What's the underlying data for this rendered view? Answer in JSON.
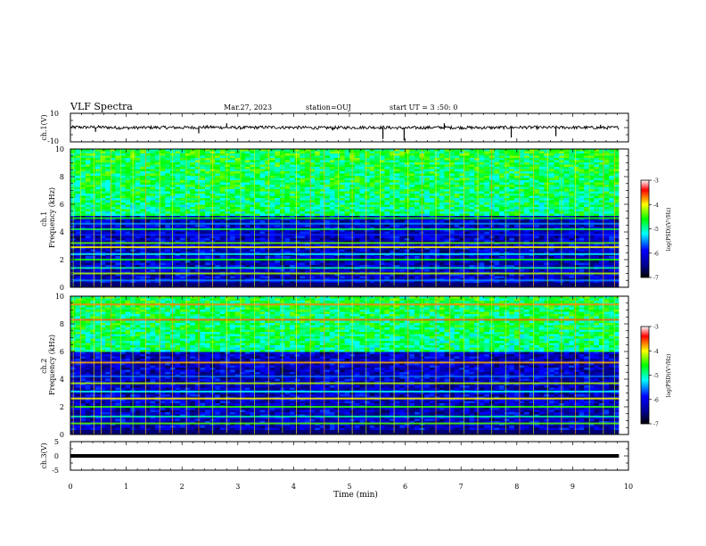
{
  "header": {
    "title": "VLF Spectra",
    "date": "Mar.27, 2023",
    "station": "station=OUJ",
    "start": "start UT = 3 :50: 0"
  },
  "colors": {
    "spectrogram_scale": [
      "#000000",
      "#00008b",
      "#0000ff",
      "#00ffff",
      "#00ff00",
      "#ffff00",
      "#ff0000",
      "#ffffff"
    ],
    "trace": "#000000"
  },
  "chart_data": [
    {
      "type": "line",
      "name": "ch1-waveform",
      "ylabel": "ch.1(V)",
      "ylim": [
        -10,
        10
      ],
      "yticks": [
        "10",
        "-10"
      ],
      "x": [
        0,
        0.5,
        1.0,
        1.5,
        2.0,
        2.5,
        3.0,
        3.5,
        4.0,
        4.5,
        5.0,
        5.5,
        6.0,
        6.5,
        7.0,
        7.5,
        8.0,
        8.5,
        9.0,
        9.5,
        9.83
      ],
      "y": [
        0.2,
        0.3,
        -0.2,
        0.1,
        0.0,
        0.3,
        -0.1,
        0.2,
        0.1,
        -0.2,
        0.0,
        0.2,
        -0.3,
        0.1,
        0.0,
        -0.1,
        0.2,
        0.0,
        0.1,
        -0.1,
        0.0
      ],
      "spikes": [
        {
          "x": 0.45,
          "y": -3
        },
        {
          "x": 2.3,
          "y": -4
        },
        {
          "x": 2.8,
          "y": 3
        },
        {
          "x": 4.7,
          "y": -2
        },
        {
          "x": 5.6,
          "y": -8
        },
        {
          "x": 5.98,
          "y": -9
        },
        {
          "x": 6.7,
          "y": 3
        },
        {
          "x": 7.9,
          "y": -7
        },
        {
          "x": 8.7,
          "y": -6
        },
        {
          "x": 9.5,
          "y": 2
        }
      ]
    },
    {
      "type": "heatmap",
      "name": "ch1-spectrogram",
      "ylabel": "ch.1 Frequency (kHz)",
      "ylim": [
        0,
        10
      ],
      "yticks": [
        "0",
        "2",
        "4",
        "6",
        "8",
        "10"
      ],
      "xlim": [
        0,
        10
      ],
      "data_xmax": 9.83,
      "colorbar": {
        "label": "log(PSD)(V²/Hz)",
        "range": [
          -7,
          -3
        ],
        "ticks": [
          "-3",
          "-4",
          "-5",
          "-6",
          "-7"
        ]
      },
      "noise_floor_khz": 5.2,
      "bands_khz": [
        {
          "f": 0.5,
          "level": -5.5
        },
        {
          "f": 1.0,
          "level": -4.2
        },
        {
          "f": 1.4,
          "level": -5.0
        },
        {
          "f": 2.0,
          "level": -4.6
        },
        {
          "f": 2.4,
          "level": -5.2
        },
        {
          "f": 2.9,
          "level": -4.0
        },
        {
          "f": 3.2,
          "level": -4.4
        },
        {
          "f": 3.8,
          "level": -5.8
        },
        {
          "f": 4.2,
          "level": -4.8
        },
        {
          "f": 4.6,
          "level": -5.5
        },
        {
          "f": 5.0,
          "level": -4.6
        }
      ],
      "sferics_min": [
        0.05,
        0.18,
        0.42,
        0.55,
        0.73,
        0.9,
        1.12,
        1.35,
        1.6,
        1.83,
        2.08,
        2.3,
        2.55,
        2.8,
        3.05,
        3.3,
        3.55,
        3.8,
        4.05,
        4.3,
        4.55,
        4.8,
        5.05,
        5.3,
        5.55,
        5.8,
        6.05,
        6.3,
        6.55,
        6.8,
        7.05,
        7.3,
        7.55,
        7.8,
        8.05,
        8.3,
        8.55,
        8.8,
        9.05,
        9.3,
        9.55,
        9.75
      ]
    },
    {
      "type": "heatmap",
      "name": "ch2-spectrogram",
      "ylabel": "ch.2 Frequency (kHz)",
      "ylim": [
        0,
        10
      ],
      "yticks": [
        "0",
        "2",
        "4",
        "6",
        "8",
        "10"
      ],
      "xlim": [
        0,
        10
      ],
      "data_xmax": 9.83,
      "colorbar": {
        "label": "log(PSD)(V²/Hz)",
        "range": [
          -7,
          -3
        ],
        "ticks": [
          "-3",
          "-4",
          "-5",
          "-6",
          "-7"
        ]
      },
      "noise_floor_khz": 6.0,
      "bands_khz": [
        {
          "f": 0.8,
          "level": -4.4
        },
        {
          "f": 1.3,
          "level": -5.0
        },
        {
          "f": 2.0,
          "level": -4.5
        },
        {
          "f": 2.6,
          "level": -4.0
        },
        {
          "f": 3.1,
          "level": -5.2
        },
        {
          "f": 3.7,
          "level": -4.2
        },
        {
          "f": 4.2,
          "level": -5.6
        },
        {
          "f": 5.2,
          "level": -3.8
        },
        {
          "f": 8.3,
          "level": -3.6
        },
        {
          "f": 9.4,
          "level": -3.7
        }
      ],
      "sferics_min": [
        0.05,
        0.18,
        0.42,
        0.55,
        0.73,
        0.9,
        1.12,
        1.35,
        1.6,
        1.83,
        2.08,
        2.3,
        2.55,
        2.8,
        3.05,
        3.3,
        3.55,
        3.8,
        4.05,
        4.3,
        4.55,
        4.8,
        5.05,
        5.3,
        5.55,
        5.8,
        6.05,
        6.3,
        6.55,
        6.8,
        7.05,
        7.3,
        7.55,
        7.8,
        8.05,
        8.3,
        8.55,
        8.8,
        9.05,
        9.3,
        9.55,
        9.75
      ]
    },
    {
      "type": "line",
      "name": "ch3-waveform",
      "ylabel": "ch.3(V)",
      "ylim": [
        -5,
        5
      ],
      "yticks": [
        "5",
        "0",
        "-5"
      ],
      "x": [
        0,
        9.83
      ],
      "y": [
        0,
        0
      ]
    }
  ],
  "xaxis": {
    "label": "Time (min)",
    "range": [
      0,
      10
    ],
    "ticks": [
      "0",
      "1",
      "2",
      "3",
      "4",
      "5",
      "6",
      "7",
      "8",
      "9",
      "10"
    ]
  }
}
